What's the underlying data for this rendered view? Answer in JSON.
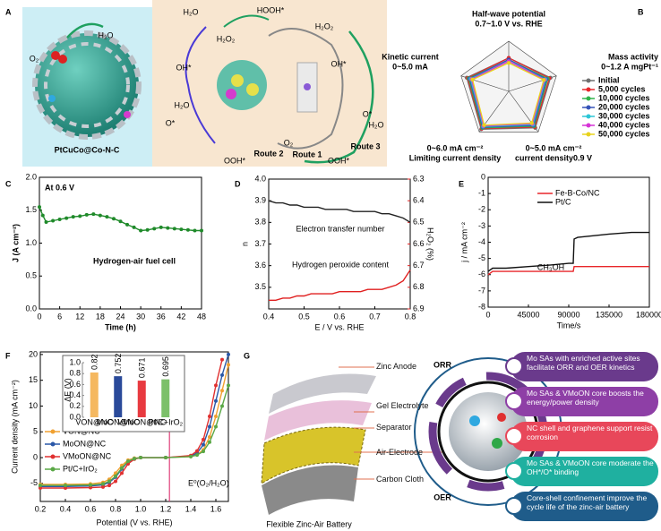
{
  "panel_labels": [
    "A",
    "B",
    "C",
    "D",
    "E",
    "F",
    "G"
  ],
  "figure_a": {
    "labels": [
      "O₂",
      "H₂O",
      "H₂O",
      "HOOH*",
      "H₂O₂",
      "OH*",
      "OH*",
      "H₂O₂",
      "O*",
      "O*",
      "H₂O",
      "H₂O",
      "O₂",
      "OOH*",
      "OOH*"
    ],
    "routes": [
      "Route 2",
      "Route 1",
      "Route 3"
    ],
    "caption": "PtCuCo@Co-N-C"
  },
  "chart_data": [
    {
      "type": "radar",
      "axes": [
        {
          "name": "Half-wave potential",
          "range": "0.7~1.0 V vs. RHE",
          "lim": [
            0.7,
            1.0
          ]
        },
        {
          "name": "Mass activity",
          "range": "0~1.2 A mgPt⁻¹",
          "lim": [
            0,
            1.2
          ]
        },
        {
          "name": "current density0.9 V",
          "range": "0~5.0 mA cm⁻²",
          "lim": [
            0,
            5.0
          ]
        },
        {
          "name": "Limiting current density",
          "range": "0~6.0 mA cm⁻²",
          "lim": [
            0,
            6.0
          ]
        },
        {
          "name": "Kinetic current",
          "range": "0~5.0  mA",
          "lim": [
            0,
            5.0
          ]
        }
      ],
      "grid": true,
      "series": [
        {
          "name": "Initial",
          "color": "#707070",
          "values": [
            0.9,
            1.05,
            4.5,
            5.6,
            4.4
          ]
        },
        {
          "name": "5,000 cycles",
          "color": "#e8262a",
          "values": [
            0.9,
            1.02,
            4.4,
            5.5,
            4.3
          ]
        },
        {
          "name": "10,000 cycles",
          "color": "#2fb34a",
          "values": [
            0.89,
            0.98,
            4.3,
            5.4,
            4.2
          ]
        },
        {
          "name": "20,000 cycles",
          "color": "#3553b8",
          "values": [
            0.89,
            0.95,
            4.2,
            5.3,
            4.1
          ]
        },
        {
          "name": "30,000 cycles",
          "color": "#2cc6d6",
          "values": [
            0.88,
            0.92,
            4.1,
            5.2,
            4.0
          ]
        },
        {
          "name": "40,000 cycles",
          "color": "#d633d6",
          "values": [
            0.88,
            0.9,
            4.0,
            5.1,
            3.9
          ]
        },
        {
          "name": "50,000 cycles",
          "color": "#e8d21c",
          "values": [
            0.87,
            0.88,
            3.9,
            5.0,
            3.8
          ]
        }
      ]
    },
    {
      "type": "line",
      "xlabel": "Time (h)",
      "ylabel": "J (A cm⁻²)",
      "annotations": [
        "At 0.6 V",
        "Hydrogen-air fuel cell"
      ],
      "xlim": [
        0,
        48
      ],
      "xticks": [
        0,
        6,
        12,
        18,
        24,
        30,
        36,
        42,
        48
      ],
      "ylim": [
        0,
        2.0
      ],
      "yticks": [
        {
          "value": 0,
          "label": "0.0"
        },
        0.5,
        {
          "value": 1,
          "label": "1.0"
        },
        1.5,
        {
          "value": 2,
          "label": "2.0"
        }
      ],
      "x": [
        0,
        1,
        2,
        4,
        6,
        8,
        10,
        12,
        14,
        16,
        18,
        20,
        22,
        24,
        26,
        28,
        30,
        32,
        34,
        36,
        38,
        40,
        42,
        44,
        46,
        48
      ],
      "series": [
        {
          "name": null,
          "color": "#1f8a2a",
          "values": [
            1.55,
            1.42,
            1.32,
            1.34,
            1.36,
            1.38,
            1.4,
            1.41,
            1.43,
            1.44,
            1.42,
            1.4,
            1.37,
            1.33,
            1.28,
            1.24,
            1.19,
            1.2,
            1.22,
            1.24,
            1.23,
            1.22,
            1.21,
            1.2,
            1.19,
            1.19
          ]
        }
      ]
    },
    {
      "type": "line",
      "xlabel": "E / V vs. RHE",
      "ylabel": "n",
      "y2label": "H₂O₂ (%)",
      "annotations": [
        "Electron transfer number",
        "Hydrogen peroxide content"
      ],
      "xlim": [
        0.4,
        0.8
      ],
      "xticks": [
        0.4,
        0.5,
        0.6,
        0.7,
        0.8
      ],
      "ylim": [
        3.4,
        4.0
      ],
      "yticks": [
        3.5,
        3.6,
        3.7,
        3.8,
        3.9,
        {
          "value": 4,
          "label": "4.0"
        }
      ],
      "y2lim": [
        6.9,
        6.3
      ],
      "y2ticks": [
        6.3,
        6.4,
        6.5,
        6.6,
        6.7,
        6.8,
        6.9
      ],
      "x": [
        0.4,
        0.42,
        0.44,
        0.46,
        0.48,
        0.5,
        0.52,
        0.54,
        0.56,
        0.58,
        0.6,
        0.62,
        0.64,
        0.66,
        0.68,
        0.7,
        0.72,
        0.74,
        0.76,
        0.78,
        0.8
      ],
      "series": [
        {
          "name": null,
          "color": "#222222",
          "values": [
            3.9,
            3.89,
            3.89,
            3.88,
            3.88,
            3.87,
            3.87,
            3.87,
            3.86,
            3.86,
            3.86,
            3.86,
            3.85,
            3.85,
            3.85,
            3.85,
            3.84,
            3.84,
            3.83,
            3.82,
            3.8
          ]
        },
        {
          "name": null,
          "color": "#e02020",
          "axis": "y2",
          "values": [
            6.86,
            6.86,
            6.85,
            6.85,
            6.84,
            6.84,
            6.83,
            6.83,
            6.83,
            6.83,
            6.82,
            6.82,
            6.82,
            6.82,
            6.81,
            6.81,
            6.81,
            6.8,
            6.79,
            6.77,
            6.72
          ]
        }
      ]
    },
    {
      "type": "line",
      "xlabel": "Time/s",
      "ylabel": "j / mA cm⁻²",
      "annotations": [
        "CH₃OH"
      ],
      "xlim": [
        0,
        180000
      ],
      "xticks": [
        0,
        45000,
        90000,
        135000,
        180000
      ],
      "ylim": [
        -8,
        0
      ],
      "yticks": [
        -8,
        -7,
        -6,
        -5,
        -4,
        -3,
        -2,
        -1,
        0
      ],
      "x": [
        0,
        5000,
        20000,
        45000,
        70000,
        90000,
        95000,
        96000,
        100000,
        135000,
        160000,
        180000
      ],
      "series": [
        {
          "name": "Fe-B-Co/NC",
          "color": "#e8262a",
          "values": [
            -6.0,
            -5.8,
            -5.8,
            -5.8,
            -5.8,
            -5.8,
            -5.8,
            -5.5,
            -5.5,
            -5.5,
            -5.5,
            -5.5
          ]
        },
        {
          "name": "Pt/C",
          "color": "#111111",
          "values": [
            -5.8,
            -5.6,
            -5.6,
            -5.5,
            -5.4,
            -5.3,
            -5.3,
            -3.8,
            -3.7,
            -3.5,
            -3.4,
            -3.4
          ]
        }
      ]
    },
    {
      "type": "line",
      "xlabel": "Potential (V vs. RHE)",
      "ylabel": "Current density (mA cm⁻²)",
      "annotations": [
        "E⁰(O₂/H₂O)"
      ],
      "vline": 1.23,
      "xlim": [
        0.2,
        1.7
      ],
      "xticks": [
        0.2,
        0.4,
        0.6,
        0.8,
        {
          "value": 1,
          "label": "1.0"
        },
        1.2,
        1.4,
        1.6
      ],
      "ylim": [
        -8.5,
        20.5
      ],
      "yticks": [
        -5,
        0,
        5,
        10,
        15,
        20
      ],
      "x": [
        0.2,
        0.4,
        0.6,
        0.7,
        0.75,
        0.8,
        0.85,
        0.9,
        0.95,
        1.0,
        1.2,
        1.4,
        1.45,
        1.5,
        1.55,
        1.6,
        1.65,
        1.7
      ],
      "series": [
        {
          "name": "VON@NC",
          "color": "#f0a030",
          "values": [
            -5.2,
            -5.2,
            -5.1,
            -4.8,
            -4.2,
            -3.0,
            -1.5,
            -0.5,
            -0.1,
            0,
            0,
            0.2,
            0.6,
            1.5,
            4,
            8,
            13,
            18
          ]
        },
        {
          "name": "MoON@NC",
          "color": "#2a58a8",
          "values": [
            -5.6,
            -5.6,
            -5.5,
            -5.3,
            -4.8,
            -3.8,
            -2.2,
            -0.8,
            -0.2,
            0,
            0,
            0.3,
            0.9,
            2.5,
            6,
            11,
            16,
            20
          ]
        },
        {
          "name": "VMoON@NC",
          "color": "#e03030",
          "values": [
            -5.9,
            -5.9,
            -5.8,
            -5.7,
            -5.4,
            -4.6,
            -3.0,
            -1.2,
            -0.3,
            0,
            0,
            0.4,
            1.3,
            3.5,
            8,
            14,
            19,
            null
          ]
        },
        {
          "name": "Pt/C+IrO₂",
          "color": "#5aa846",
          "values": [
            -5.4,
            -5.4,
            -5.3,
            -5.1,
            -4.6,
            -3.6,
            -2.0,
            -0.7,
            -0.2,
            0,
            0,
            0.2,
            0.5,
            1.2,
            3,
            6,
            10,
            14
          ]
        }
      ]
    },
    {
      "type": "bar",
      "ylabel": "ΔE (V)",
      "categories": [
        "VON@NC",
        "MoON@NC",
        "VMoON@NC",
        "Pt/C+IrO₂"
      ],
      "values": [
        0.82,
        0.752,
        0.671,
        0.695
      ],
      "colors": [
        "#f5b860",
        "#2a4a9a",
        "#e83a40",
        "#7cc06a"
      ],
      "ylim": [
        0,
        1.0
      ],
      "yticks": [
        {
          "value": 0,
          "label": "0.0"
        },
        0.2,
        0.4,
        0.6,
        0.8,
        {
          "value": 1,
          "label": "1.0"
        }
      ]
    }
  ],
  "figure_g": {
    "layers": [
      "Zinc Anode",
      "Gel Electrolyte",
      "Separator",
      "Air-Electrode",
      "Carbon Cloth"
    ],
    "caption": "Flexible Zinc-Air Battery",
    "orr": "ORR",
    "oer": "OER",
    "features": [
      {
        "text": "Mo SAs with enriched active sites facilitate ORR and OER kinetics",
        "color": "#6a3a8c"
      },
      {
        "text": "Mo SAs & VMoON core boosts the energy/power density",
        "color": "#8e3fa6"
      },
      {
        "text": "NC shell and graphene support resist corrosion",
        "color": "#e8475a"
      },
      {
        "text": "Mo SAs & VMoON core moderate the OH*/O* binding",
        "color": "#1fb0a0"
      },
      {
        "text": "Core-shell confinement improve the cycle life of the zinc-air battery",
        "color": "#1f5c8a"
      }
    ]
  }
}
